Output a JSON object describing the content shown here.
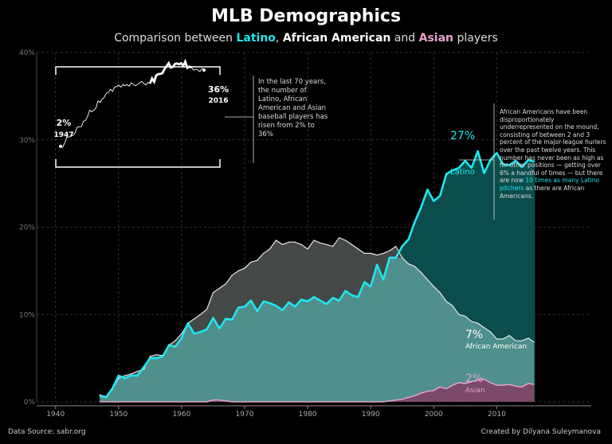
{
  "title": "MLB Demographics",
  "subtitle": {
    "prefix": "Comparison between ",
    "latino": "Latino",
    "sep": ", ",
    "african": "African American",
    "and": " and ",
    "asian": "Asian",
    "suffix": " players"
  },
  "footer": {
    "source": "Data Source: sabr.org",
    "credit": "Created by Dilyana Suleymanova"
  },
  "inset": {
    "start_value": "2%",
    "start_year": "1947",
    "end_value": "36%",
    "end_year": "2016"
  },
  "annotation_left": "In the last 70 years, the number of Latino, African American and Asian baseball players has risen from 2% to 36%",
  "annotation_right": {
    "text_before": "African Americans have been disproportionately underrepresented on the mound, consisting of between 2 and 3 percent of the major-league hurlers over the past twelve years. This number has never been as high as for other positions — getting over 6% a handful of times — but there are now ",
    "highlight": "10 times as many Latino pitchers",
    "text_after": " as there are African Americans."
  },
  "labels": {
    "latino_value": "27%",
    "latino_name": "Latino",
    "african_value": "7%",
    "african_name": "African American",
    "asian_value": "2%",
    "asian_name": "Asian"
  },
  "colors": {
    "latino": "#1fe6ee",
    "african": "#ffffff",
    "asian": "#e7a3cc"
  },
  "chart_data": {
    "type": "area",
    "title": "MLB Demographics",
    "xlabel": "",
    "ylabel": "",
    "xlim": [
      1937,
      2025
    ],
    "ylim": [
      0,
      40
    ],
    "x_ticks": [
      1940,
      1950,
      1960,
      1970,
      1980,
      1990,
      2000,
      2010
    ],
    "y_ticks": [
      0,
      10,
      20,
      30,
      40
    ],
    "y_tick_labels": [
      "0%",
      "10%",
      "20%",
      "30%",
      "40%"
    ],
    "years": [
      1947,
      1948,
      1949,
      1950,
      1951,
      1952,
      1953,
      1954,
      1955,
      1956,
      1957,
      1958,
      1959,
      1960,
      1961,
      1962,
      1963,
      1964,
      1965,
      1966,
      1967,
      1968,
      1969,
      1970,
      1971,
      1972,
      1973,
      1974,
      1975,
      1976,
      1977,
      1978,
      1979,
      1980,
      1981,
      1982,
      1983,
      1984,
      1985,
      1986,
      1987,
      1988,
      1989,
      1990,
      1991,
      1992,
      1993,
      1994,
      1995,
      1996,
      1997,
      1998,
      1999,
      2000,
      2001,
      2002,
      2003,
      2004,
      2005,
      2006,
      2007,
      2008,
      2009,
      2010,
      2011,
      2012,
      2013,
      2014,
      2015,
      2016
    ],
    "series": [
      {
        "name": "Latino",
        "values": [
          0.7,
          0.5,
          1.5,
          3.0,
          2.7,
          3.0,
          3.0,
          4.0,
          5.0,
          5.0,
          5.2,
          6.5,
          6.3,
          7.3,
          9.0,
          7.8,
          8.0,
          8.3,
          9.6,
          8.4,
          9.5,
          9.4,
          10.8,
          10.9,
          11.6,
          10.4,
          11.5,
          11.3,
          11.0,
          10.5,
          11.4,
          10.9,
          11.7,
          11.5,
          12.0,
          11.6,
          11.2,
          11.9,
          11.6,
          12.7,
          12.2,
          12.0,
          13.7,
          13.2,
          15.7,
          14.0,
          16.5,
          16.5,
          17.8,
          18.6,
          20.6,
          22.3,
          24.3,
          23.0,
          23.6,
          26.1,
          26.5,
          26.8,
          27.6,
          26.8,
          28.7,
          26.2,
          27.7,
          28.5,
          27.2,
          27.1,
          27.6,
          26.9,
          27.7,
          27.5
        ]
      },
      {
        "name": "African American",
        "values": [
          0.8,
          0.6,
          1.4,
          2.7,
          3.0,
          3.2,
          3.5,
          3.7,
          5.2,
          5.4,
          5.3,
          6.5,
          7.0,
          7.8,
          9.0,
          9.5,
          10.0,
          10.6,
          12.5,
          13.0,
          13.5,
          14.5,
          15.0,
          15.3,
          16.0,
          16.2,
          17.0,
          17.5,
          18.5,
          18.0,
          18.3,
          18.3,
          18.0,
          17.5,
          18.5,
          18.2,
          18.0,
          17.8,
          18.8,
          18.5,
          18.0,
          17.5,
          17.0,
          17.0,
          16.8,
          17.0,
          17.3,
          17.8,
          16.5,
          15.8,
          15.5,
          14.8,
          14.0,
          13.2,
          12.5,
          11.5,
          11.0,
          10.0,
          9.8,
          9.2,
          9.0,
          8.5,
          8.0,
          7.2,
          7.2,
          7.6,
          7.0,
          7.0,
          7.3,
          6.8
        ]
      },
      {
        "name": "Asian",
        "values": [
          0,
          0,
          0,
          0,
          0,
          0,
          0,
          0,
          0,
          0,
          0,
          0,
          0,
          0,
          0,
          0,
          0,
          0,
          0.2,
          0.2,
          0.1,
          0,
          0,
          0,
          0,
          0,
          0,
          0,
          0,
          0,
          0,
          0,
          0,
          0,
          0,
          0,
          0,
          0,
          0,
          0,
          0,
          0,
          0,
          0,
          0,
          0,
          0.1,
          0.2,
          0.3,
          0.5,
          0.7,
          1.0,
          1.2,
          1.3,
          1.7,
          1.5,
          1.9,
          2.2,
          2.1,
          2.3,
          2.5,
          2.6,
          2.2,
          1.9,
          1.9,
          2.0,
          1.8,
          1.7,
          2.1,
          2.0
        ]
      }
    ],
    "inset": {
      "description": "Combined share of Latino, African American and Asian players",
      "start": {
        "year": 1947,
        "value": 2
      },
      "end": {
        "year": 2016,
        "value": 36
      }
    }
  }
}
